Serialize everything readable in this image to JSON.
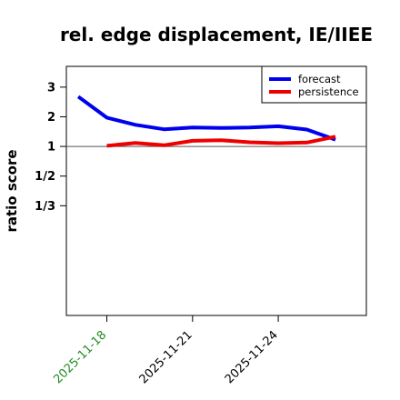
{
  "chart_data": {
    "type": "line",
    "title": "rel. edge displacement, IE/IIEE",
    "xlabel": "",
    "ylabel": "ratio score",
    "y_scale": "reciprocal (1/2 and 1/3 plotted symmetric to 2 and 3)",
    "y_range": [
      -4.7,
      3.7
    ],
    "y_ticks": [
      {
        "value": 3,
        "label": "3"
      },
      {
        "value": 2,
        "label": "2"
      },
      {
        "value": 1,
        "label": "1"
      },
      {
        "value": 0.5,
        "label": "1/2"
      },
      {
        "value": 0.3333,
        "label": "1/3"
      }
    ],
    "x_range": [
      "2025-11-16 14:00",
      "2025-11-27 02:00"
    ],
    "x_ticks": [
      {
        "value": "2025-11-18",
        "label": "2025-11-18",
        "color": "#228B22"
      },
      {
        "value": "2025-11-21",
        "label": "2025-11-21",
        "color": "#000000"
      },
      {
        "value": "2025-11-24",
        "label": "2025-11-24",
        "color": "#000000"
      }
    ],
    "reference_line": 1,
    "grid": false,
    "legend": "top-right",
    "series": [
      {
        "name": "forecast",
        "color": "#0000ee",
        "points": [
          {
            "x": "2025-11-17",
            "y": 2.68
          },
          {
            "x": "2025-11-18",
            "y": 1.97
          },
          {
            "x": "2025-11-19",
            "y": 1.73
          },
          {
            "x": "2025-11-20",
            "y": 1.58
          },
          {
            "x": "2025-11-21",
            "y": 1.64
          },
          {
            "x": "2025-11-22",
            "y": 1.62
          },
          {
            "x": "2025-11-23",
            "y": 1.64
          },
          {
            "x": "2025-11-24",
            "y": 1.68
          },
          {
            "x": "2025-11-25",
            "y": 1.57
          },
          {
            "x": "2025-11-26",
            "y": 1.23
          }
        ]
      },
      {
        "name": "persistence",
        "color": "#ee0000",
        "points": [
          {
            "x": "2025-11-18",
            "y": 1.02
          },
          {
            "x": "2025-11-19",
            "y": 1.12
          },
          {
            "x": "2025-11-20",
            "y": 1.04
          },
          {
            "x": "2025-11-21",
            "y": 1.19
          },
          {
            "x": "2025-11-22",
            "y": 1.21
          },
          {
            "x": "2025-11-23",
            "y": 1.14
          },
          {
            "x": "2025-11-24",
            "y": 1.11
          },
          {
            "x": "2025-11-25",
            "y": 1.13
          },
          {
            "x": "2025-11-26",
            "y": 1.33
          }
        ]
      }
    ]
  }
}
